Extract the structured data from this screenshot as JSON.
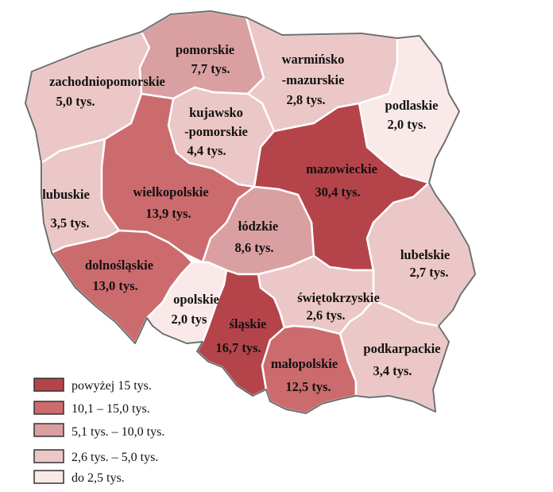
{
  "map": {
    "colors": {
      "c1": "#b5444a",
      "c2": "#cc6b6e",
      "c3": "#daa0a1",
      "c4": "#ecc7c7",
      "c5": "#f9e9e9"
    },
    "regions": [
      {
        "id": "zachodniopomorskie",
        "name": "zachodniopomorskie",
        "value": "5,0 tys.",
        "class": "c4"
      },
      {
        "id": "pomorskie",
        "name": "pomorskie",
        "value": "7,7 tys.",
        "class": "c3"
      },
      {
        "id": "warminsko-mazurskie",
        "name": "warmińsko",
        "name2": "-mazurskie",
        "value": "2,8 tys.",
        "class": "c4"
      },
      {
        "id": "podlaskie",
        "name": "podlaskie",
        "value": "2,0 tys.",
        "class": "c5"
      },
      {
        "id": "kujawsko-pomorskie",
        "name": "kujawsko",
        "name2": "-pomorskie",
        "value": "4,4 tys.",
        "class": "c4"
      },
      {
        "id": "lubuskie",
        "name": "lubuskie",
        "value": "3,5 tys.",
        "class": "c4"
      },
      {
        "id": "wielkopolskie",
        "name": "wielkopolskie",
        "value": "13,9 tys.",
        "class": "c2"
      },
      {
        "id": "mazowieckie",
        "name": "mazowieckie",
        "value": "30,4 tys.",
        "class": "c1"
      },
      {
        "id": "lodzkie",
        "name": "łódzkie",
        "value": "8,6 tys.",
        "class": "c3"
      },
      {
        "id": "lubelskie",
        "name": "lubelskie",
        "value": "2,7 tys.",
        "class": "c4"
      },
      {
        "id": "dolnoslaskie",
        "name": "dolnośląskie",
        "value": "13,0 tys.",
        "class": "c2"
      },
      {
        "id": "opolskie",
        "name": "opolskie",
        "value": "2,0 tys",
        "class": "c5"
      },
      {
        "id": "slaskie",
        "name": "śląskie",
        "value": "16,7 tys.",
        "class": "c1"
      },
      {
        "id": "swietokrzyskie",
        "name": "świętokrzyskie",
        "value": "2,6 tys.",
        "class": "c4"
      },
      {
        "id": "malopolskie",
        "name": "małopolskie",
        "value": "12,5 tys.",
        "class": "c2"
      },
      {
        "id": "podkarpackie",
        "name": "podkarpackie",
        "value": "3,4 tys.",
        "class": "c4"
      }
    ]
  },
  "legend": {
    "items": [
      {
        "label": "powyżej  15 tys.",
        "color": "#b5444a"
      },
      {
        "label": "10,1 – 15,0 tys.",
        "color": "#cc6b6e"
      },
      {
        "label": "5,1 tys. – 10,0 tys.",
        "color": "#daa0a1"
      },
      {
        "label": "2,6 tys. – 5,0 tys.",
        "color": "#ecc7c7"
      },
      {
        "label": "do   2,5 tys.",
        "color": "#f9e9e9"
      }
    ]
  }
}
